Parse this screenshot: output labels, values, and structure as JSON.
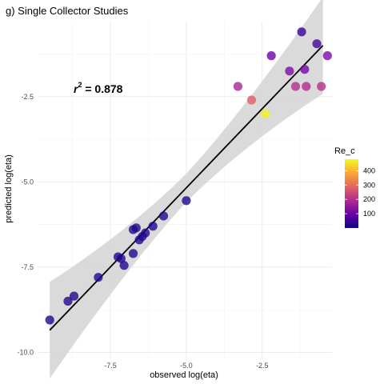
{
  "chart_data": {
    "type": "scatter",
    "title": "g) Single Collector Studies",
    "xlabel": "observed log(eta)",
    "ylabel": "predicted log(eta)",
    "xlim": [
      -9.9,
      -0.2
    ],
    "ylim": [
      -10.2,
      -0.3
    ],
    "x_ticks": [
      -7.5,
      -5.0,
      -2.5
    ],
    "x_tick_labels": [
      "-7.5",
      "-5.0",
      "-2.5"
    ],
    "y_ticks": [
      -10.0,
      -7.5,
      -5.0,
      -2.5
    ],
    "y_tick_labels": [
      "-10.0",
      "-7.5",
      "-5.0",
      "-2.5"
    ],
    "grid": true,
    "annotation": {
      "base": "r",
      "superscript": "2",
      "text": " = 0.878"
    },
    "regression": {
      "x_start": -9.5,
      "y_start": -9.35,
      "x_end": -0.5,
      "y_end": -1.0,
      "confidence_band": true
    },
    "color_scale": {
      "name": "Re_c",
      "min": 0,
      "max": 480,
      "breaks": [
        100,
        200,
        300,
        400
      ],
      "break_labels": [
        "100",
        "200",
        "300",
        "400"
      ],
      "colors": [
        "#0d0887",
        "#6a00a8",
        "#b12a90",
        "#e16462",
        "#fca636",
        "#f0f921"
      ]
    },
    "points": [
      {
        "x": -9.5,
        "y": -9.05,
        "re": 20
      },
      {
        "x": -8.9,
        "y": -8.5,
        "re": 20
      },
      {
        "x": -8.7,
        "y": -8.35,
        "re": 20
      },
      {
        "x": -7.9,
        "y": -7.8,
        "re": 20
      },
      {
        "x": -7.25,
        "y": -7.2,
        "re": 20
      },
      {
        "x": -7.15,
        "y": -7.25,
        "re": 20
      },
      {
        "x": -7.05,
        "y": -7.45,
        "re": 20
      },
      {
        "x": -6.75,
        "y": -7.1,
        "re": 20
      },
      {
        "x": -6.75,
        "y": -6.4,
        "re": 20
      },
      {
        "x": -6.65,
        "y": -6.35,
        "re": 20
      },
      {
        "x": -6.55,
        "y": -6.7,
        "re": 20
      },
      {
        "x": -6.45,
        "y": -6.6,
        "re": 20
      },
      {
        "x": -6.35,
        "y": -6.5,
        "re": 20
      },
      {
        "x": -6.1,
        "y": -6.3,
        "re": 20
      },
      {
        "x": -5.75,
        "y": -6.0,
        "re": 20
      },
      {
        "x": -5.0,
        "y": -5.55,
        "re": 20
      },
      {
        "x": -3.3,
        "y": -2.2,
        "re": 180
      },
      {
        "x": -2.85,
        "y": -2.6,
        "re": 280
      },
      {
        "x": -2.4,
        "y": -3.0,
        "re": 470
      },
      {
        "x": -2.2,
        "y": -1.3,
        "re": 100
      },
      {
        "x": -1.6,
        "y": -1.75,
        "re": 120
      },
      {
        "x": -1.4,
        "y": -2.2,
        "re": 200
      },
      {
        "x": -1.2,
        "y": -0.6,
        "re": 40
      },
      {
        "x": -1.1,
        "y": -1.7,
        "re": 110
      },
      {
        "x": -1.05,
        "y": -2.2,
        "re": 190
      },
      {
        "x": -0.7,
        "y": -0.95,
        "re": 60
      },
      {
        "x": -0.55,
        "y": -2.2,
        "re": 200
      },
      {
        "x": -0.35,
        "y": -1.3,
        "re": 120
      }
    ]
  }
}
